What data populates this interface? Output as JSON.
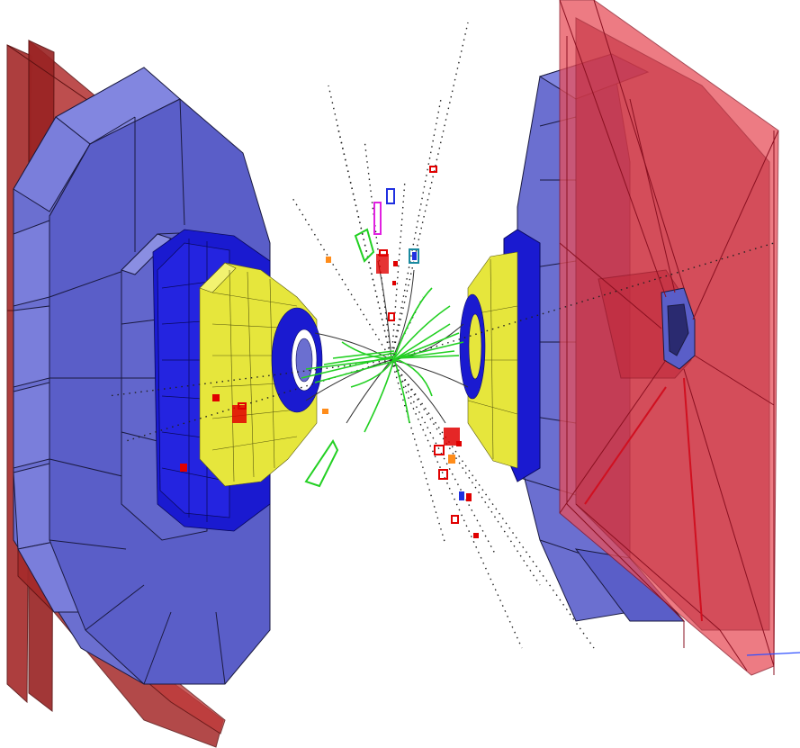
{
  "scene": {
    "background": "#ffffff",
    "colors": {
      "muon_chamber_red_dark": "#a52a2a",
      "muon_chamber_red_light": "#e8505a",
      "endcap_disk": "#6b6fd0",
      "endcap_disk_edge": "#1a1a40",
      "calorimeter_blue": "#1a1ad0",
      "inner_cone_yellow": "#e6e63c",
      "track_green": "#22d022",
      "hit_red": "#e00000",
      "hit_orange": "#ff8c1a",
      "hit_magenta": "#e020e0",
      "hit_blue": "#2030e0",
      "hit_teal": "#1a8aa0",
      "dotted_track": "#222222",
      "axis_blue": "#3050ff"
    },
    "objects": [
      "left-muon-chambers",
      "left-endcap-disk",
      "left-calorimeter",
      "left-inner-cone",
      "right-endcap-disk",
      "right-inner-cone",
      "right-muon-chambers",
      "particle-tracks",
      "energy-deposits"
    ]
  }
}
